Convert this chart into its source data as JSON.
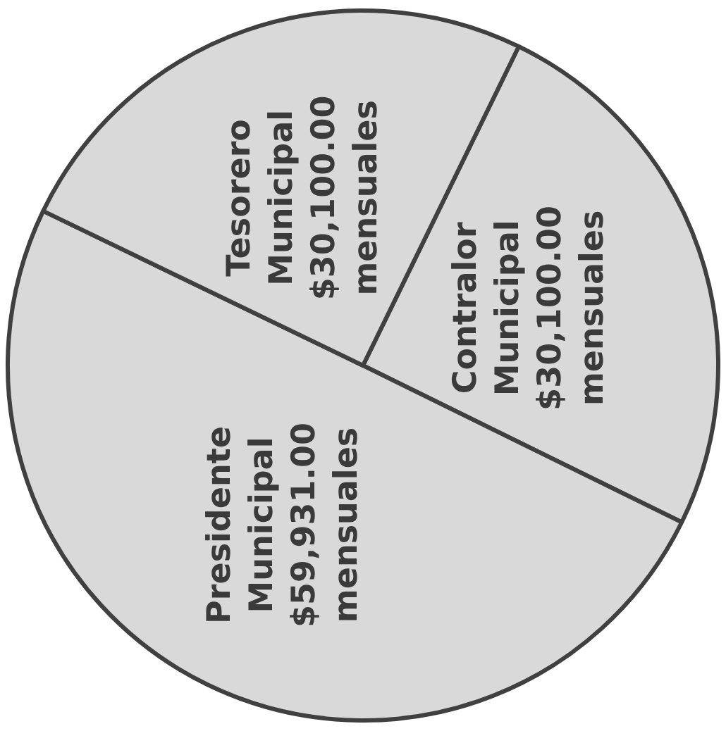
{
  "chart_data": {
    "type": "pie",
    "categories": [
      "Contralor Municipal",
      "Presidente Municipal",
      "Tesorero Municipal"
    ],
    "values": [
      30100,
      59931,
      30100
    ],
    "value_labels": [
      "$30,100.00 mensuales",
      "$59,931.00 mensuales",
      "$30,100.00 mensuales"
    ],
    "colors": [
      "#d9d9d9",
      "#d9d9d9",
      "#d9d9d9"
    ]
  }
}
